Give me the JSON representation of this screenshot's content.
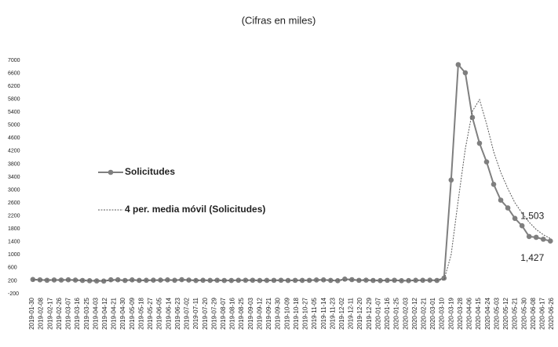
{
  "chart_data": {
    "type": "line",
    "title": "(Cifras en miles)",
    "x": [
      "2019-02-02",
      "2019-02-09",
      "2019-02-16",
      "2019-02-23",
      "2019-03-02",
      "2019-03-09",
      "2019-03-16",
      "2019-03-23",
      "2019-03-30",
      "2019-04-06",
      "2019-04-13",
      "2019-04-20",
      "2019-04-27",
      "2019-05-04",
      "2019-05-11",
      "2019-05-18",
      "2019-05-25",
      "2019-06-01",
      "2019-06-08",
      "2019-06-15",
      "2019-06-22",
      "2019-06-29",
      "2019-07-06",
      "2019-07-13",
      "2019-07-20",
      "2019-07-27",
      "2019-08-03",
      "2019-08-10",
      "2019-08-17",
      "2019-08-24",
      "2019-08-31",
      "2019-09-07",
      "2019-09-14",
      "2019-09-21",
      "2019-09-28",
      "2019-10-05",
      "2019-10-12",
      "2019-10-19",
      "2019-10-26",
      "2019-11-02",
      "2019-11-09",
      "2019-11-16",
      "2019-11-23",
      "2019-11-30",
      "2019-12-07",
      "2019-12-14",
      "2019-12-21",
      "2019-12-28",
      "2020-01-04",
      "2020-01-11",
      "2020-01-18",
      "2020-01-25",
      "2020-02-01",
      "2020-02-08",
      "2020-02-15",
      "2020-02-22",
      "2020-02-29",
      "2020-03-07",
      "2020-03-14",
      "2020-03-21",
      "2020-03-28",
      "2020-04-04",
      "2020-04-11",
      "2020-04-18",
      "2020-04-25",
      "2020-05-02",
      "2020-05-09",
      "2020-05-16",
      "2020-05-23",
      "2020-05-30",
      "2020-06-06",
      "2020-06-13",
      "2020-06-20",
      "2020-06-27"
    ],
    "series": [
      {
        "name": "Solicitudes",
        "color": "#7f7f7f",
        "style": "solid-markers",
        "values": [
          239,
          229,
          217,
          225,
          223,
          230,
          221,
          211,
          202,
          196,
          192,
          230,
          230,
          211,
          228,
          212,
          215,
          218,
          221,
          227,
          216,
          233,
          222,
          209,
          216,
          212,
          217,
          209,
          210,
          216,
          217,
          217,
          209,
          212,
          214,
          217,
          210,
          214,
          213,
          214,
          225,
          228,
          213,
          203,
          252,
          235,
          214,
          220,
          211,
          206,
          214,
          217,
          203,
          206,
          215,
          216,
          219,
          211,
          282,
          3307,
          6867,
          6615,
          5237,
          4442,
          3867,
          3176,
          2687,
          2446,
          2123,
          1897,
          1566,
          1540,
          1482,
          1427
        ],
        "value_labels": [
          null,
          null,
          null,
          null,
          null,
          null,
          null,
          null,
          null,
          null,
          null,
          null,
          null,
          null,
          null,
          null,
          null,
          null,
          null,
          null,
          null,
          null,
          null,
          null,
          null,
          null,
          null,
          null,
          null,
          null,
          null,
          null,
          null,
          null,
          null,
          null,
          null,
          null,
          null,
          null,
          null,
          null,
          null,
          null,
          null,
          null,
          null,
          null,
          null,
          null,
          null,
          null,
          null,
          null,
          null,
          null,
          null,
          null,
          null,
          null,
          null,
          null,
          null,
          null,
          null,
          null,
          null,
          null,
          null,
          null,
          null,
          null,
          null,
          "1,427"
        ]
      },
      {
        "name": "4 per. media móvil (Solicitudes)",
        "color": "#595959",
        "style": "dotted",
        "values": [
          225,
          228,
          228,
          227,
          226,
          225,
          225,
          221,
          216,
          209,
          205,
          205,
          211,
          216,
          218,
          219,
          217,
          218,
          219,
          220,
          221,
          224,
          224,
          222,
          220,
          215,
          214,
          214,
          212,
          214,
          215,
          217,
          215,
          214,
          213,
          215,
          213,
          214,
          213,
          214,
          216,
          220,
          220,
          217,
          224,
          228,
          226,
          230,
          220,
          213,
          213,
          212,
          210,
          210,
          210,
          213,
          213,
          216,
          226,
          1001,
          2682,
          4268,
          5431,
          5790,
          5040,
          4180,
          3543,
          3044,
          2605,
          2288,
          2008,
          1782,
          1621,
          1503
        ],
        "value_labels": [
          null,
          null,
          null,
          null,
          null,
          null,
          null,
          null,
          null,
          null,
          null,
          null,
          null,
          null,
          null,
          null,
          null,
          null,
          null,
          null,
          null,
          null,
          null,
          null,
          null,
          null,
          null,
          null,
          null,
          null,
          null,
          null,
          null,
          null,
          null,
          null,
          null,
          null,
          null,
          null,
          null,
          null,
          null,
          null,
          null,
          null,
          null,
          null,
          null,
          null,
          null,
          null,
          null,
          null,
          null,
          null,
          null,
          null,
          null,
          null,
          null,
          null,
          null,
          null,
          null,
          null,
          null,
          null,
          null,
          null,
          null,
          null,
          null,
          "1,503"
        ]
      }
    ],
    "xlim": [
      "2019-01-30",
      "2020-06-26"
    ],
    "xticks": [
      "2019-01-30",
      "2019-02-08",
      "2019-02-17",
      "2019-02-26",
      "2019-03-07",
      "2019-03-16",
      "2019-03-25",
      "2019-04-03",
      "2019-04-12",
      "2019-04-21",
      "2019-04-30",
      "2019-05-09",
      "2019-05-18",
      "2019-05-27",
      "2019-06-05",
      "2019-06-14",
      "2019-06-23",
      "2019-07-02",
      "2019-07-11",
      "2019-07-20",
      "2019-07-29",
      "2019-08-07",
      "2019-08-16",
      "2019-08-25",
      "2019-09-03",
      "2019-09-12",
      "2019-09-21",
      "2019-09-30",
      "2019-10-09",
      "2019-10-18",
      "2019-10-27",
      "2019-11-05",
      "2019-11-14",
      "2019-11-23",
      "2019-12-02",
      "2019-12-11",
      "2019-12-20",
      "2019-12-29",
      "2020-01-07",
      "2020-01-16",
      "2020-01-25",
      "2020-02-03",
      "2020-02-12",
      "2020-02-21",
      "2020-03-01",
      "2020-03-10",
      "2020-03-19",
      "2020-03-28",
      "2020-04-06",
      "2020-04-15",
      "2020-04-24",
      "2020-05-03",
      "2020-05-12",
      "2020-05-21",
      "2020-05-30",
      "2020-06-08",
      "2020-06-17",
      "2020-06-26"
    ],
    "ylim": [
      -200,
      7000
    ],
    "yticks": [
      -200,
      200,
      600,
      1000,
      1400,
      1800,
      2200,
      2600,
      3000,
      3400,
      3800,
      4200,
      4600,
      5000,
      5400,
      5800,
      6200,
      6600,
      7000
    ],
    "grid": false
  }
}
